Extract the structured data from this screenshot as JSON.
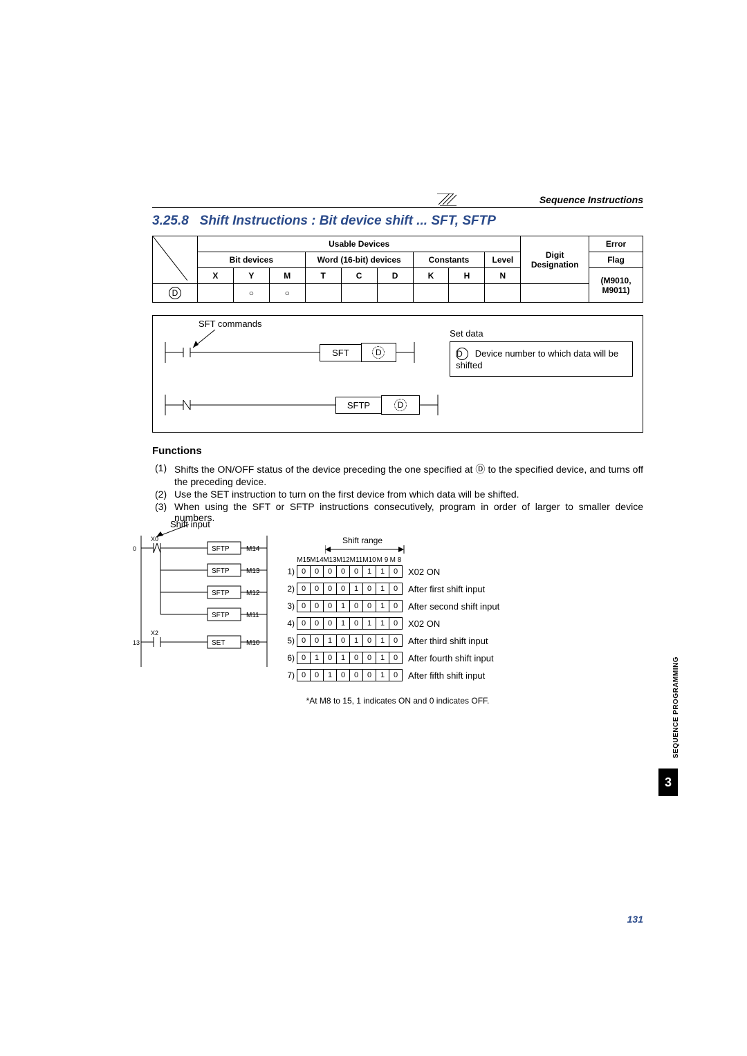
{
  "header": {
    "title": "Sequence Instructions"
  },
  "section": {
    "number": "3.25.8",
    "title": "Shift Instructions : Bit device shift ... SFT, SFTP"
  },
  "deviceTable": {
    "groupHeaders": {
      "usable": "Usable Devices",
      "digit": "Digit",
      "error": "Error"
    },
    "subHeaders": {
      "bit": "Bit devices",
      "word": "Word (16-bit) devices",
      "constants": "Constants",
      "level": "Level",
      "flag": "Flag"
    },
    "cols": [
      "X",
      "Y",
      "M",
      "T",
      "C",
      "D",
      "K",
      "H",
      "N"
    ],
    "designation": "Designation",
    "errorFlag": "(M9010, M9011)",
    "rowLabel": "D",
    "marks": {
      "Y": "○",
      "M": "○"
    }
  },
  "ladderDiagram": {
    "sftLabel": "SFT commands",
    "inst1": {
      "name": "SFT",
      "arg": "D"
    },
    "inst2": {
      "name": "SFTP",
      "arg": "D"
    },
    "setDataTitle": "Set data",
    "setDataLabel": "D",
    "setDataDesc": "Device number to which data will be shifted"
  },
  "functions": {
    "title": "Functions",
    "items": [
      {
        "n": "(1)",
        "text": "Shifts the ON/OFF status of the device preceding the one specified at Ⓓ to the specified device, and turns off the preceding device."
      },
      {
        "n": "(2)",
        "text": "Use the SET instruction to turn on the first device from which data will be shifted."
      },
      {
        "n": "(3)",
        "text": "When using the SFT or SFTP instructions consecutively, program in order of larger to smaller device numbers."
      }
    ]
  },
  "shiftDiagram": {
    "shiftInputLabel": "Shift input",
    "rangeLabel": "Shift range",
    "bitHeaders": [
      "M15",
      "M14",
      "M13",
      "M12",
      "M11",
      "M10",
      "M 9",
      "M 8"
    ],
    "ladderRows": [
      {
        "inst": "SFTP",
        "dev": "M14",
        "contact": "X0",
        "pulse": true
      },
      {
        "inst": "SFTP",
        "dev": "M13"
      },
      {
        "inst": "SFTP",
        "dev": "M12"
      },
      {
        "inst": "SFTP",
        "dev": "M11"
      },
      {
        "inst": "SET",
        "dev": "M10",
        "contact": "X2",
        "line": "13"
      }
    ],
    "rows": [
      {
        "n": "1)",
        "bits": [
          "0",
          "0",
          "0",
          "0",
          "0",
          "1",
          "1",
          "0"
        ],
        "label": "X02 ON"
      },
      {
        "n": "2)",
        "bits": [
          "0",
          "0",
          "0",
          "0",
          "1",
          "0",
          "1",
          "0"
        ],
        "label": "After first shift input"
      },
      {
        "n": "3)",
        "bits": [
          "0",
          "0",
          "0",
          "1",
          "0",
          "0",
          "1",
          "0"
        ],
        "label": "After second shift input"
      },
      {
        "n": "4)",
        "bits": [
          "0",
          "0",
          "0",
          "1",
          "0",
          "1",
          "1",
          "0"
        ],
        "label": "X02 ON"
      },
      {
        "n": "5)",
        "bits": [
          "0",
          "0",
          "1",
          "0",
          "1",
          "0",
          "1",
          "0"
        ],
        "label": "After third shift input"
      },
      {
        "n": "6)",
        "bits": [
          "0",
          "1",
          "0",
          "1",
          "0",
          "0",
          "1",
          "0"
        ],
        "label": "After fourth shift input"
      },
      {
        "n": "7)",
        "bits": [
          "0",
          "0",
          "1",
          "0",
          "0",
          "0",
          "1",
          "0"
        ],
        "label": "After fifth shift input"
      }
    ],
    "footnote": "*At M8 to 15, 1 indicates ON and 0 indicates OFF."
  },
  "sidebar": {
    "text": "SEQUENCE PROGRAMMING",
    "tab": "3"
  },
  "pageNumber": "131"
}
